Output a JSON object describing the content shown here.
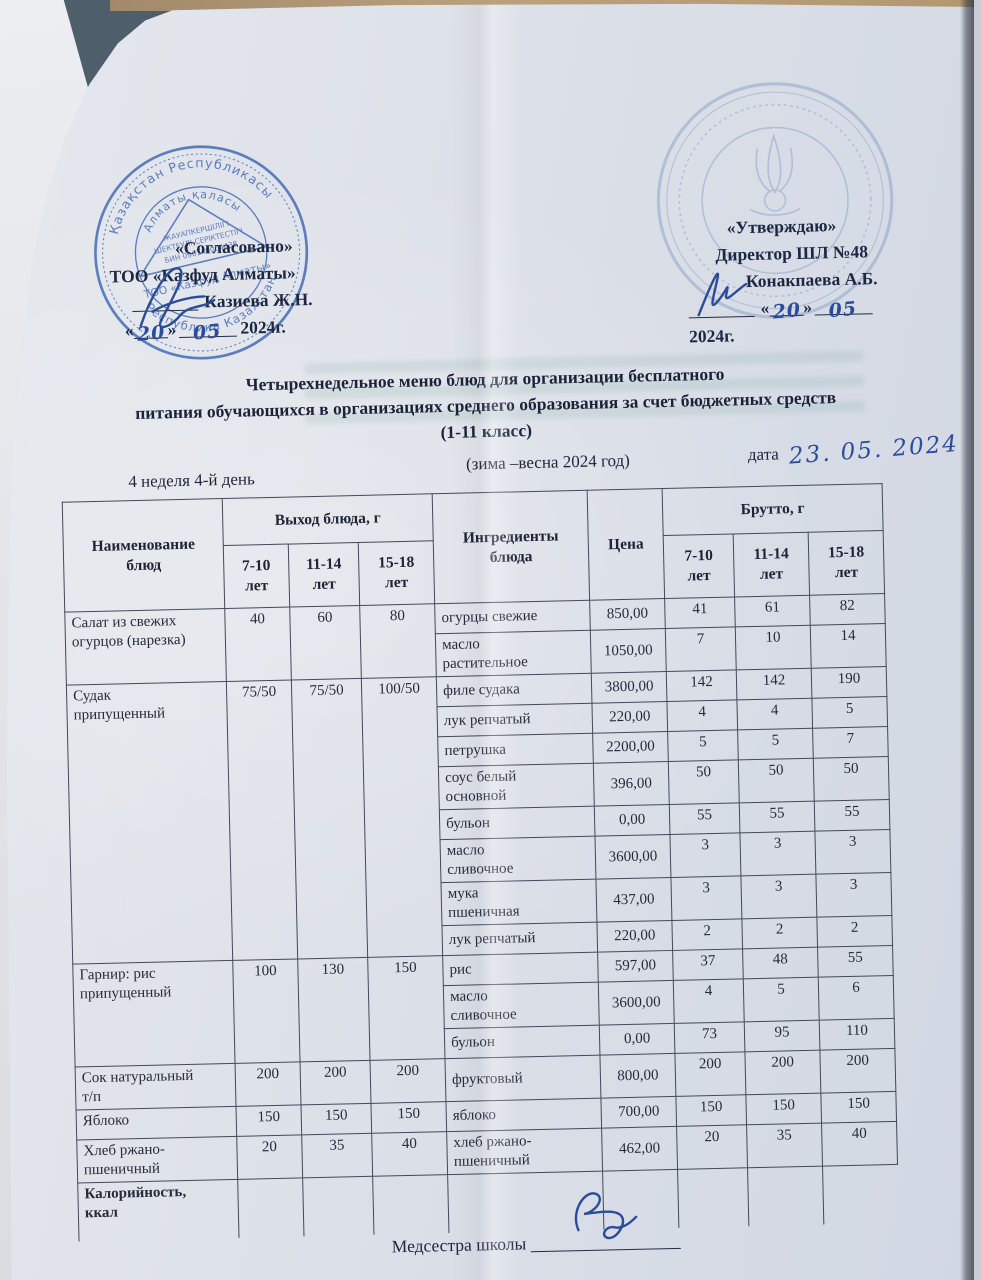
{
  "approvals": {
    "left": {
      "title": "«Согласовано»",
      "org": "ТОО «Казфуд Алматы»",
      "signer": "Казиева Ж.Н.",
      "quote_l": "«",
      "quote_r": "»",
      "day": "20",
      "month": "05",
      "year": "2024г."
    },
    "right": {
      "title": "«Утверждаю»",
      "role": "Директор ШЛ №48",
      "signer": "Конакпаева А.Б.",
      "quote_l": "«",
      "quote_r": "»",
      "day": "20",
      "month": "05",
      "year": "2024г."
    }
  },
  "org_stamp": {
    "arc_top": "Қазақстан Республикасы",
    "arc_inner": "Алматы қаласы",
    "line1": "ЖАУАПКЕРШІЛІГІ",
    "line2": "ШЕКТЕУЛІ СЕРІКТЕСТІГІ",
    "line3": "БИН 090140004438",
    "band": "ТОО «Казфуд Алматы»",
    "arc_bottom": "Республика Казахстан"
  },
  "title": {
    "line1": "Четырехнедельное меню блюд для организации бесплатного",
    "line2": "питания обучающихся в организациях среднего образования за счет бюджетных средств",
    "line3": "(1-11 класс)"
  },
  "meta": {
    "week": "4 неделя 4-й день",
    "season": "(зима –весна  2024 год)",
    "date_label": "дата",
    "date_value": "23. 05. 2024"
  },
  "table": {
    "header": {
      "name": "Наименование\nблюд",
      "output_group": "Выход блюда, г",
      "ingredients": "Ингредиенты\nблюда",
      "price": "Цена",
      "brutto_group": "Брутто, г",
      "ages": [
        "7-10\nлет",
        "11-14\nлет",
        "15-18\nлет"
      ]
    },
    "dishes": [
      {
        "name": "Салат из свежих\nогурцов (нарезка)",
        "output": [
          "40",
          "60",
          "80"
        ],
        "ingredients": [
          {
            "name": "огурцы свежие",
            "price": "850,00",
            "brutto": [
              "41",
              "61",
              "82"
            ]
          },
          {
            "name": "масло\nрастительное",
            "price": "1050,00",
            "brutto": [
              "7",
              "10",
              "14"
            ]
          }
        ]
      },
      {
        "name": "Судак\nприпущенный",
        "output": [
          "75/50",
          "75/50",
          "100/50"
        ],
        "ingredients": [
          {
            "name": "филе судака",
            "price": "3800,00",
            "brutto": [
              "142",
              "142",
              "190"
            ]
          },
          {
            "name": "лук репчатый",
            "price": "220,00",
            "brutto": [
              "4",
              "4",
              "5"
            ]
          },
          {
            "name": "петрушка",
            "price": "2200,00",
            "brutto": [
              "5",
              "5",
              "7"
            ]
          },
          {
            "name": "соус белый\nосновной",
            "price": "396,00",
            "brutto": [
              "50",
              "50",
              "50"
            ]
          },
          {
            "name": "бульон",
            "price": "0,00",
            "brutto": [
              "55",
              "55",
              "55"
            ]
          },
          {
            "name": "масло\nсливочное",
            "price": "3600,00",
            "brutto": [
              "3",
              "3",
              "3"
            ]
          },
          {
            "name": "мука\nпшеничная",
            "price": "437,00",
            "brutto": [
              "3",
              "3",
              "3"
            ]
          },
          {
            "name": "лук репчатый",
            "price": "220,00",
            "brutto": [
              "2",
              "2",
              "2"
            ]
          }
        ]
      },
      {
        "name": "Гарнир: рис\nприпущенный",
        "output": [
          "100",
          "130",
          "150"
        ],
        "ingredients": [
          {
            "name": "рис",
            "price": "597,00",
            "brutto": [
              "37",
              "48",
              "55"
            ]
          },
          {
            "name": "масло\nсливочное",
            "price": "3600,00",
            "brutto": [
              "4",
              "5",
              "6"
            ]
          },
          {
            "name": "бульон",
            "price": "0,00",
            "brutto": [
              "73",
              "95",
              "110"
            ]
          }
        ]
      },
      {
        "name": "Сок натуральный\nт/п",
        "output": [
          "200",
          "200",
          "200"
        ],
        "ingredients": [
          {
            "name": "фруктовый",
            "price": "800,00",
            "brutto": [
              "200",
              "200",
              "200"
            ]
          }
        ]
      },
      {
        "name": "Яблоко",
        "output": [
          "150",
          "150",
          "150"
        ],
        "ingredients": [
          {
            "name": "яблоко",
            "price": "700,00",
            "brutto": [
              "150",
              "150",
              "150"
            ]
          }
        ]
      },
      {
        "name": "Хлеб ржано-\nпшеничный",
        "output": [
          "20",
          "35",
          "40"
        ],
        "ingredients": [
          {
            "name": "хлеб ржано-\nпшеничный",
            "price": "462,00",
            "brutto": [
              "20",
              "35",
              "40"
            ]
          }
        ]
      },
      {
        "name": "Калорийность,\nккал",
        "bold": true,
        "output": [
          "",
          "",
          ""
        ],
        "ingredients": [
          {
            "name": "",
            "price": "",
            "brutto": [
              "",
              "",
              ""
            ]
          }
        ]
      }
    ]
  },
  "footer": {
    "label": "Медсестра школы"
  }
}
